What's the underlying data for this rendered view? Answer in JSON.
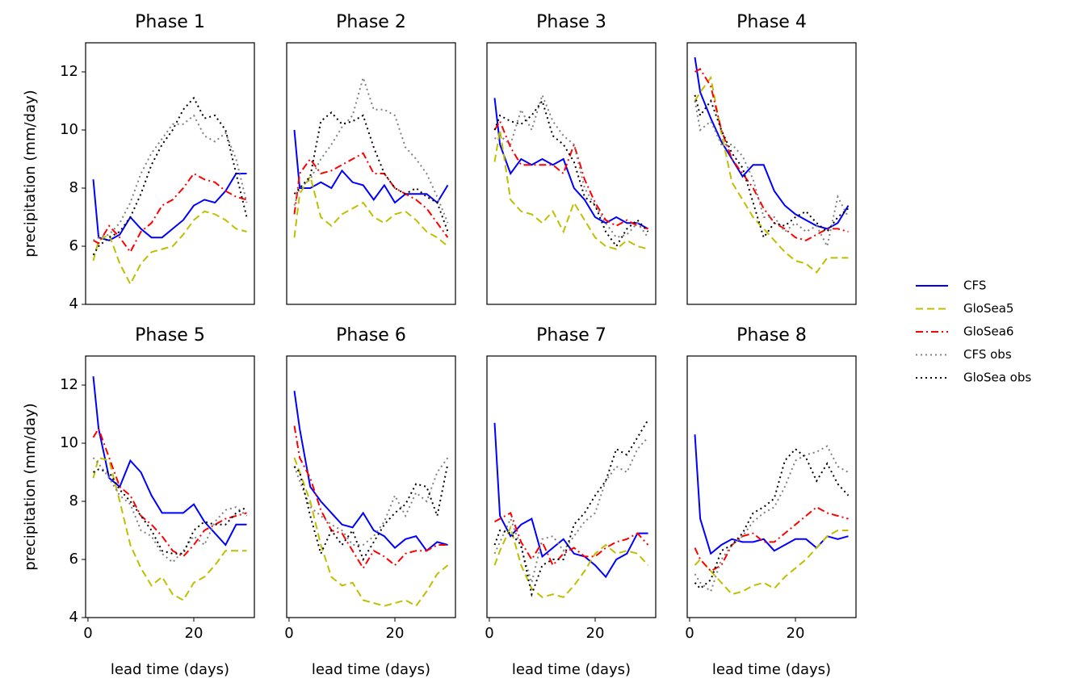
{
  "chart_data": {
    "type": "line",
    "xlabel": "lead time (days)",
    "ylabel": "precipitation (mm/day)",
    "xlim": [
      -0.45,
      31.45
    ],
    "ylim": [
      4,
      13
    ],
    "xticks": [
      0,
      20
    ],
    "yticks": [
      4,
      6,
      8,
      10,
      12
    ],
    "x": [
      1,
      2,
      4,
      6,
      8,
      10,
      12,
      14,
      16,
      18,
      20,
      22,
      24,
      26,
      28,
      30
    ],
    "series": [
      {
        "name": "CFS",
        "color": "#0000ff",
        "linestyle": "solid"
      },
      {
        "name": "GloSea5",
        "color": "#bfbf00",
        "linestyle": "dashed"
      },
      {
        "name": "GloSea6",
        "color": "#ff0000",
        "linestyle": "dashdot"
      },
      {
        "name": "CFS obs",
        "color": "#808080",
        "linestyle": "dotted"
      },
      {
        "name": "GloSea obs",
        "color": "#000000",
        "linestyle": "dotted"
      }
    ],
    "panels": [
      {
        "title": "Phase 1",
        "values": [
          [
            8.3,
            6.3,
            6.2,
            6.4,
            7.0,
            6.6,
            6.3,
            6.3,
            6.6,
            6.9,
            7.4,
            7.6,
            7.5,
            7.9,
            8.5,
            8.5
          ],
          [
            5.5,
            6.2,
            6.4,
            5.4,
            4.7,
            5.4,
            5.8,
            5.9,
            6.0,
            6.4,
            6.9,
            7.2,
            7.1,
            6.9,
            6.6,
            6.5
          ],
          [
            6.2,
            6.1,
            6.7,
            6.3,
            5.8,
            6.5,
            6.8,
            7.4,
            7.6,
            8.0,
            8.5,
            8.3,
            8.2,
            7.9,
            7.7,
            7.6
          ],
          [
            6.2,
            6.3,
            6.4,
            6.8,
            7.5,
            8.5,
            9.2,
            9.7,
            10.2,
            10.2,
            10.5,
            9.8,
            9.6,
            9.9,
            9.0,
            7.5
          ],
          [
            5.7,
            6.0,
            6.3,
            6.5,
            7.0,
            7.8,
            8.8,
            9.5,
            10.0,
            10.7,
            11.1,
            10.4,
            10.5,
            10.0,
            8.5,
            7.0
          ]
        ]
      },
      {
        "title": "Phase 2",
        "values": [
          [
            10.0,
            8.0,
            8.0,
            8.2,
            8.0,
            8.6,
            8.2,
            8.1,
            7.6,
            8.1,
            7.5,
            7.8,
            7.8,
            7.8,
            7.5,
            8.1
          ],
          [
            6.3,
            7.8,
            8.4,
            7.0,
            6.7,
            7.1,
            7.3,
            7.5,
            7.0,
            6.8,
            7.1,
            7.2,
            6.9,
            6.5,
            6.3,
            6.0
          ],
          [
            7.1,
            8.5,
            9.0,
            8.5,
            8.6,
            8.8,
            9.0,
            9.2,
            8.5,
            8.5,
            8.0,
            7.8,
            7.6,
            7.3,
            6.8,
            6.3
          ],
          [
            7.4,
            8.0,
            8.3,
            9.0,
            9.5,
            10.1,
            10.5,
            11.8,
            10.7,
            10.7,
            10.5,
            9.4,
            9.0,
            8.5,
            7.7,
            6.8
          ],
          [
            7.8,
            8.0,
            8.4,
            10.3,
            10.6,
            10.2,
            10.3,
            10.5,
            9.4,
            8.5,
            8.0,
            7.8,
            8.0,
            7.7,
            7.5,
            6.5
          ]
        ]
      },
      {
        "title": "Phase 3",
        "values": [
          [
            11.1,
            9.5,
            8.5,
            9.0,
            8.8,
            9.0,
            8.8,
            9.0,
            8.0,
            7.6,
            7.0,
            6.8,
            7.0,
            6.8,
            6.8,
            6.6
          ],
          [
            8.9,
            10.0,
            7.6,
            7.2,
            7.1,
            6.8,
            7.2,
            6.5,
            7.5,
            6.9,
            6.3,
            6.0,
            5.9,
            6.2,
            6.0,
            5.9
          ],
          [
            10.0,
            10.3,
            9.4,
            8.8,
            8.8,
            8.8,
            8.8,
            8.5,
            9.5,
            8.3,
            7.5,
            6.9,
            6.7,
            6.9,
            6.7,
            6.6
          ],
          [
            9.7,
            9.8,
            9.5,
            10.7,
            10.0,
            11.2,
            10.3,
            9.8,
            9.5,
            8.0,
            7.4,
            6.8,
            6.3,
            6.4,
            6.8,
            6.3
          ],
          [
            10.0,
            10.5,
            10.3,
            10.2,
            10.5,
            11.0,
            9.8,
            9.5,
            8.9,
            7.7,
            7.4,
            6.5,
            6.0,
            6.6,
            6.9,
            6.5
          ]
        ]
      },
      {
        "title": "Phase 4",
        "values": [
          [
            12.5,
            11.3,
            10.4,
            9.6,
            9.0,
            8.4,
            8.8,
            8.8,
            7.9,
            7.4,
            7.1,
            6.9,
            6.7,
            6.6,
            6.8,
            7.4
          ],
          [
            11.0,
            11.3,
            11.8,
            9.9,
            8.2,
            7.6,
            7.0,
            6.6,
            6.2,
            5.8,
            5.5,
            5.4,
            5.1,
            5.6,
            5.6,
            5.6
          ],
          [
            12.0,
            12.1,
            11.5,
            10.0,
            9.0,
            8.5,
            8.0,
            7.3,
            6.8,
            6.6,
            6.3,
            6.2,
            6.4,
            6.6,
            6.6,
            6.5
          ],
          [
            11.0,
            10.0,
            10.3,
            9.5,
            9.5,
            9.1,
            8.3,
            7.0,
            7.0,
            6.5,
            6.8,
            6.5,
            6.7,
            6.0,
            7.7,
            7.0
          ],
          [
            11.2,
            10.5,
            11.0,
            10.0,
            9.2,
            8.7,
            7.5,
            6.3,
            6.8,
            6.7,
            7.0,
            7.2,
            6.8,
            6.5,
            7.0,
            7.3
          ]
        ]
      },
      {
        "title": "Phase 5",
        "values": [
          [
            12.3,
            10.5,
            8.8,
            8.5,
            9.4,
            9.0,
            8.2,
            7.6,
            7.6,
            7.6,
            7.9,
            7.3,
            6.9,
            6.5,
            7.2,
            7.2
          ],
          [
            8.8,
            9.5,
            9.4,
            8.0,
            6.5,
            5.7,
            5.1,
            5.4,
            4.8,
            4.6,
            5.2,
            5.4,
            5.8,
            6.3,
            6.3,
            6.3
          ],
          [
            10.2,
            10.5,
            9.5,
            8.5,
            8.2,
            7.5,
            7.2,
            6.8,
            6.3,
            6.1,
            6.5,
            7.0,
            7.2,
            7.4,
            7.5,
            7.6
          ],
          [
            9.5,
            9.3,
            8.8,
            8.2,
            7.9,
            7.0,
            6.8,
            6.2,
            5.9,
            6.3,
            6.8,
            6.5,
            7.3,
            7.7,
            7.8,
            7.5
          ],
          [
            9.0,
            9.1,
            9.0,
            8.4,
            8.0,
            7.5,
            7.0,
            6.3,
            6.2,
            6.2,
            7.0,
            7.3,
            7.2,
            7.2,
            7.6,
            7.8
          ]
        ]
      },
      {
        "title": "Phase 6",
        "values": [
          [
            11.8,
            10.5,
            8.5,
            8.0,
            7.6,
            7.2,
            7.1,
            7.6,
            7.0,
            6.8,
            6.4,
            6.7,
            6.8,
            6.3,
            6.6,
            6.5
          ],
          [
            9.5,
            9.0,
            8.0,
            6.5,
            5.4,
            5.1,
            5.2,
            4.6,
            4.5,
            4.4,
            4.5,
            4.6,
            4.4,
            4.9,
            5.5,
            5.8
          ],
          [
            10.6,
            9.5,
            8.8,
            7.7,
            7.0,
            6.9,
            6.3,
            5.7,
            6.3,
            6.1,
            5.8,
            6.2,
            6.3,
            6.3,
            6.5,
            6.5
          ],
          [
            9.2,
            8.7,
            7.8,
            7.5,
            7.2,
            7.0,
            6.5,
            6.5,
            6.8,
            7.3,
            8.2,
            7.5,
            8.3,
            8.0,
            9.0,
            9.5
          ],
          [
            9.2,
            9.0,
            7.5,
            6.2,
            7.0,
            6.5,
            7.0,
            6.0,
            6.6,
            7.2,
            7.6,
            7.9,
            8.6,
            8.5,
            7.5,
            9.3
          ]
        ]
      },
      {
        "title": "Phase 7",
        "values": [
          [
            10.7,
            7.5,
            6.8,
            7.2,
            7.4,
            6.1,
            6.4,
            6.7,
            6.2,
            6.1,
            5.8,
            5.4,
            6.0,
            6.2,
            6.9,
            6.9
          ],
          [
            5.8,
            6.3,
            7.1,
            5.8,
            5.0,
            4.7,
            4.8,
            4.7,
            5.1,
            5.6,
            6.2,
            6.5,
            6.2,
            6.3,
            6.2,
            5.8
          ],
          [
            7.3,
            7.4,
            7.6,
            6.6,
            6.0,
            6.6,
            5.8,
            6.2,
            6.4,
            6.1,
            6.1,
            6.4,
            6.6,
            6.7,
            6.9,
            6.5
          ],
          [
            6.2,
            6.6,
            7.4,
            6.4,
            5.2,
            6.7,
            6.8,
            6.3,
            6.8,
            7.3,
            7.6,
            8.7,
            9.2,
            9.0,
            9.8,
            10.2
          ],
          [
            6.5,
            7.0,
            6.9,
            6.5,
            4.8,
            5.8,
            6.0,
            6.0,
            7.2,
            7.6,
            8.2,
            8.7,
            9.8,
            9.6,
            10.2,
            10.8
          ]
        ]
      },
      {
        "title": "Phase 8",
        "values": [
          [
            10.3,
            7.4,
            6.2,
            6.5,
            6.7,
            6.6,
            6.6,
            6.7,
            6.3,
            6.5,
            6.7,
            6.7,
            6.4,
            6.8,
            6.7,
            6.8
          ],
          [
            5.8,
            6.0,
            5.6,
            5.2,
            4.8,
            4.9,
            5.1,
            5.2,
            5.0,
            5.4,
            5.7,
            6.0,
            6.4,
            6.8,
            7.0,
            7.0
          ],
          [
            6.4,
            6.0,
            5.6,
            5.8,
            6.5,
            6.8,
            6.9,
            6.6,
            6.6,
            6.9,
            7.2,
            7.5,
            7.8,
            7.6,
            7.5,
            7.4
          ],
          [
            5.5,
            5.2,
            4.9,
            6.0,
            6.5,
            6.8,
            7.3,
            7.6,
            7.8,
            8.5,
            9.4,
            9.6,
            9.7,
            9.9,
            9.2,
            9.0
          ],
          [
            5.2,
            5.0,
            5.3,
            6.3,
            6.5,
            6.9,
            7.6,
            7.8,
            8.1,
            9.4,
            9.8,
            9.5,
            8.7,
            9.3,
            8.6,
            8.2
          ]
        ]
      }
    ]
  }
}
